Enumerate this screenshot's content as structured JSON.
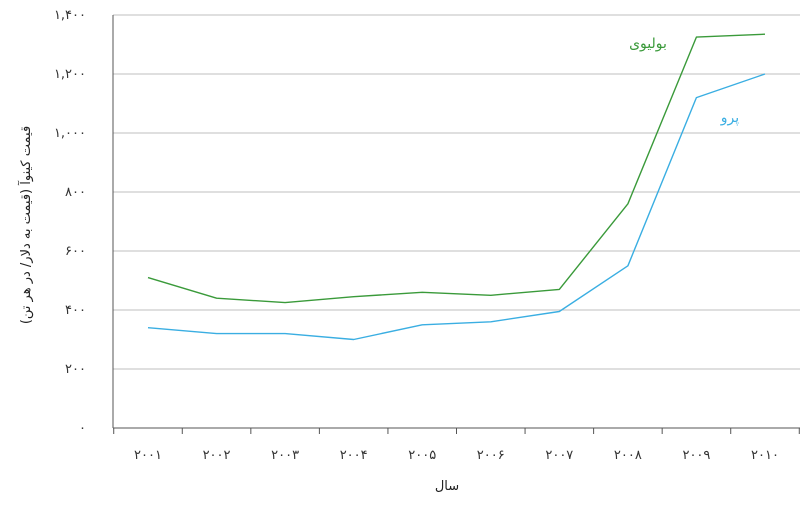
{
  "chart_data": {
    "type": "line",
    "title": "",
    "xlabel": "سال",
    "ylabel": "قیمت کینوآ (قیمت به دلار/ در هر تن)",
    "x": [
      2001,
      2002,
      2003,
      2004,
      2005,
      2006,
      2007,
      2008,
      2009,
      2010
    ],
    "x_tick_labels": [
      "۲۰۰۱",
      "۲۰۰۲",
      "۲۰۰۳",
      "۲۰۰۴",
      "۲۰۰۵",
      "۲۰۰۶",
      "۲۰۰۷",
      "۲۰۰۸",
      "۲۰۰۹",
      "۲۰۱۰"
    ],
    "y_ticks": [
      0,
      200,
      400,
      600,
      800,
      1000,
      1200,
      1400
    ],
    "y_tick_labels": [
      "۰",
      "۲۰۰",
      "۴۰۰",
      "۶۰۰",
      "۸۰۰",
      "۱,۰۰۰",
      "۱,۲۰۰",
      "۱,۴۰۰"
    ],
    "ylim": [
      0,
      1400
    ],
    "grid": true,
    "series": [
      {
        "name": "بولیوی",
        "color": "#3a9a3a",
        "values": [
          510,
          440,
          425,
          445,
          460,
          450,
          470,
          760,
          1325,
          1335
        ]
      },
      {
        "name": "پرو",
        "color": "#3aaee2",
        "values": [
          340,
          320,
          320,
          300,
          350,
          360,
          395,
          550,
          1120,
          1200
        ]
      }
    ]
  }
}
